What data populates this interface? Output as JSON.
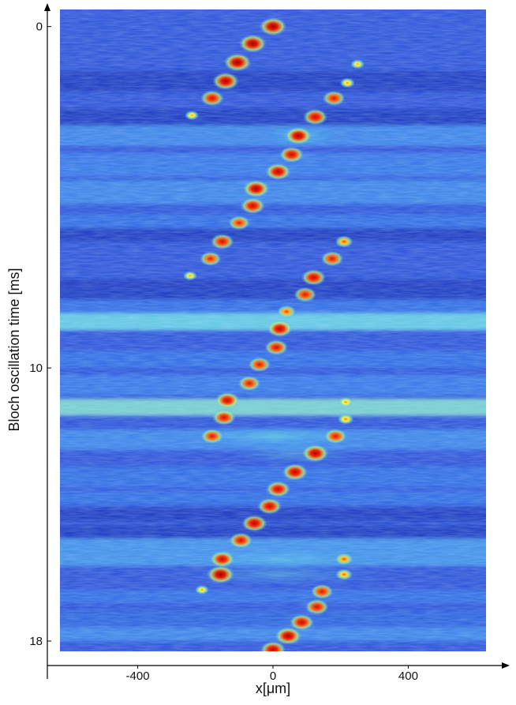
{
  "chart_data": {
    "type": "heatmap",
    "title": "",
    "xlabel": "x[μm]",
    "ylabel": "Bloch oscillation time [ms]",
    "xlim": [
      -630,
      630
    ],
    "ylim": [
      -0.5,
      18.3
    ],
    "y_inverted": true,
    "x_ticks": [
      -400,
      0,
      400
    ],
    "y_ticks": [
      0,
      10,
      18
    ],
    "colormap": [
      "#0a1fb0",
      "#2f6ee8",
      "#5cd0f0",
      "#ffff40",
      "#ff2a00",
      "#a00000"
    ],
    "background_bands": [
      {
        "y0": 1.3,
        "y1": 1.9,
        "level": 0.1
      },
      {
        "y0": 2.4,
        "y1": 2.9,
        "level": 0.1
      },
      {
        "y0": 2.9,
        "y1": 3.5,
        "level": 0.45
      },
      {
        "y0": 3.7,
        "y1": 4.4,
        "level": 0.4
      },
      {
        "y0": 4.5,
        "y1": 5.2,
        "level": 0.45
      },
      {
        "y0": 5.5,
        "y1": 5.9,
        "level": 0.35
      },
      {
        "y0": 5.9,
        "y1": 6.3,
        "level": 0.1
      },
      {
        "y0": 7.4,
        "y1": 8.0,
        "level": 0.1
      },
      {
        "y0": 8.0,
        "y1": 8.4,
        "level": 0.35
      },
      {
        "y0": 8.4,
        "y1": 8.9,
        "level": 0.75
      },
      {
        "y0": 9.5,
        "y1": 10.0,
        "level": 0.35
      },
      {
        "y0": 10.2,
        "y1": 10.8,
        "level": 0.4
      },
      {
        "y0": 10.9,
        "y1": 11.4,
        "level": 0.8
      },
      {
        "y0": 11.8,
        "y1": 12.4,
        "level": 0.45
      },
      {
        "y0": 12.9,
        "y1": 13.5,
        "level": 0.35
      },
      {
        "y0": 13.6,
        "y1": 14.0,
        "level": 0.35
      },
      {
        "y0": 14.1,
        "y1": 14.5,
        "level": 0.1
      },
      {
        "y0": 14.6,
        "y1": 15.0,
        "level": 0.1
      },
      {
        "y0": 15.0,
        "y1": 15.8,
        "level": 0.5
      },
      {
        "y0": 16.5,
        "y1": 16.9,
        "level": 0.35
      },
      {
        "y0": 17.1,
        "y1": 17.6,
        "level": 0.3
      },
      {
        "y0": 17.6,
        "y1": 18.0,
        "level": 0.45
      }
    ],
    "peaks": [
      {
        "t": 0.0,
        "x": 0,
        "i": 1.0
      },
      {
        "t": 0.5,
        "x": -60,
        "i": 1.0
      },
      {
        "t": 1.05,
        "x": -105,
        "i": 1.0
      },
      {
        "t": 1.1,
        "x": 250,
        "i": 0.3
      },
      {
        "t": 1.6,
        "x": -140,
        "i": 0.95
      },
      {
        "t": 1.65,
        "x": 220,
        "i": 0.35
      },
      {
        "t": 2.1,
        "x": -180,
        "i": 0.8
      },
      {
        "t": 2.1,
        "x": 180,
        "i": 0.75
      },
      {
        "t": 2.6,
        "x": -240,
        "i": 0.3
      },
      {
        "t": 2.65,
        "x": 125,
        "i": 0.85
      },
      {
        "t": 3.2,
        "x": 75,
        "i": 0.95
      },
      {
        "t": 3.75,
        "x": 55,
        "i": 0.85
      },
      {
        "t": 4.25,
        "x": 15,
        "i": 0.9
      },
      {
        "t": 4.75,
        "x": -50,
        "i": 0.95
      },
      {
        "t": 5.25,
        "x": -60,
        "i": 0.85
      },
      {
        "t": 5.75,
        "x": -100,
        "i": 0.7
      },
      {
        "t": 6.3,
        "x": -150,
        "i": 0.8
      },
      {
        "t": 6.3,
        "x": 210,
        "i": 0.5
      },
      {
        "t": 6.8,
        "x": -185,
        "i": 0.7
      },
      {
        "t": 6.8,
        "x": 175,
        "i": 0.75
      },
      {
        "t": 7.3,
        "x": -245,
        "i": 0.3
      },
      {
        "t": 7.35,
        "x": 120,
        "i": 0.85
      },
      {
        "t": 7.85,
        "x": 95,
        "i": 0.75
      },
      {
        "t": 8.35,
        "x": 40,
        "i": 0.55
      },
      {
        "t": 8.85,
        "x": 20,
        "i": 0.9
      },
      {
        "t": 9.4,
        "x": 10,
        "i": 0.8
      },
      {
        "t": 9.9,
        "x": -40,
        "i": 0.75
      },
      {
        "t": 10.45,
        "x": -70,
        "i": 0.75
      },
      {
        "t": 10.95,
        "x": -135,
        "i": 0.85
      },
      {
        "t": 11.0,
        "x": 215,
        "i": 0.35
      },
      {
        "t": 11.45,
        "x": -145,
        "i": 0.8
      },
      {
        "t": 11.5,
        "x": 215,
        "i": 0.4
      },
      {
        "t": 12.0,
        "x": -180,
        "i": 0.75
      },
      {
        "t": 12.0,
        "x": 185,
        "i": 0.75
      },
      {
        "t": 12.5,
        "x": 125,
        "i": 0.95
      },
      {
        "t": 13.05,
        "x": 65,
        "i": 0.9
      },
      {
        "t": 13.55,
        "x": 15,
        "i": 0.85
      },
      {
        "t": 14.05,
        "x": -10,
        "i": 0.85
      },
      {
        "t": 14.55,
        "x": -55,
        "i": 0.9
      },
      {
        "t": 15.05,
        "x": -95,
        "i": 0.8
      },
      {
        "t": 15.6,
        "x": -150,
        "i": 0.85
      },
      {
        "t": 15.6,
        "x": 210,
        "i": 0.5
      },
      {
        "t": 16.05,
        "x": -155,
        "i": 1.0
      },
      {
        "t": 16.05,
        "x": 210,
        "i": 0.45
      },
      {
        "t": 16.5,
        "x": -210,
        "i": 0.3
      },
      {
        "t": 16.55,
        "x": 145,
        "i": 0.75
      },
      {
        "t": 17.0,
        "x": 130,
        "i": 0.8
      },
      {
        "t": 17.45,
        "x": 85,
        "i": 0.85
      },
      {
        "t": 17.85,
        "x": 45,
        "i": 0.95
      },
      {
        "t": 18.25,
        "x": 0,
        "i": 0.9
      }
    ],
    "diffuse_clouds": [
      {
        "t": 3.2,
        "x": 80,
        "w": 120,
        "i": 0.55
      },
      {
        "t": 12.0,
        "x": 0,
        "w": 300,
        "i": 0.6
      },
      {
        "t": 12.5,
        "x": 60,
        "w": 200,
        "i": 0.45
      },
      {
        "t": 16.05,
        "x": 20,
        "w": 300,
        "i": 0.45
      },
      {
        "t": 15.6,
        "x": 30,
        "w": 280,
        "i": 0.4
      }
    ]
  }
}
